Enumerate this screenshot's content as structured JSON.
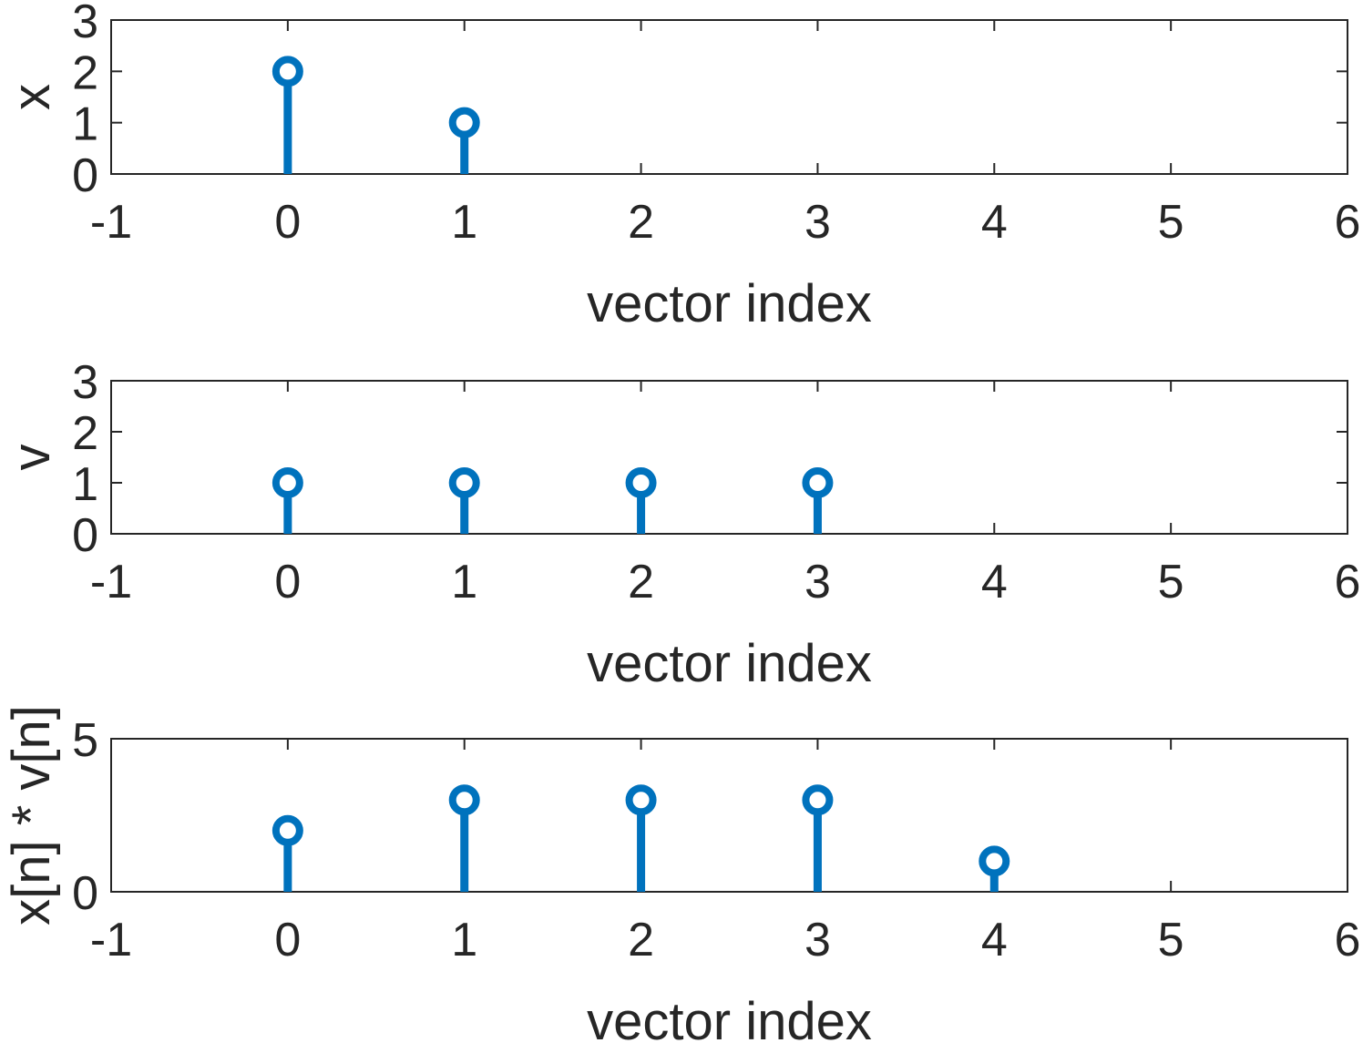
{
  "colors": {
    "stem": "#0072BD",
    "axis": "#262626",
    "background": "#ffffff"
  },
  "chart_data": [
    {
      "type": "stem",
      "xlabel": "vector index",
      "ylabel": "x",
      "xlim": [
        -1,
        6
      ],
      "ylim": [
        0,
        3
      ],
      "xticks": [
        "-1",
        "0",
        "1",
        "2",
        "3",
        "4",
        "5",
        "6"
      ],
      "yticks": [
        "0",
        "1",
        "2",
        "3"
      ],
      "x": [
        0,
        1
      ],
      "values": [
        2,
        1
      ]
    },
    {
      "type": "stem",
      "xlabel": "vector index",
      "ylabel": "v",
      "xlim": [
        -1,
        6
      ],
      "ylim": [
        0,
        3
      ],
      "xticks": [
        "-1",
        "0",
        "1",
        "2",
        "3",
        "4",
        "5",
        "6"
      ],
      "yticks": [
        "0",
        "1",
        "2",
        "3"
      ],
      "x": [
        0,
        1,
        2,
        3
      ],
      "values": [
        1,
        1,
        1,
        1
      ]
    },
    {
      "type": "stem",
      "xlabel": "vector index",
      "ylabel": "x[n] * v[n]",
      "xlim": [
        -1,
        6
      ],
      "ylim": [
        0,
        5
      ],
      "xticks": [
        "-1",
        "0",
        "1",
        "2",
        "3",
        "4",
        "5",
        "6"
      ],
      "yticks": [
        "0",
        "5"
      ],
      "x": [
        0,
        1,
        2,
        3,
        4
      ],
      "values": [
        2,
        3,
        3,
        3,
        1
      ]
    }
  ]
}
